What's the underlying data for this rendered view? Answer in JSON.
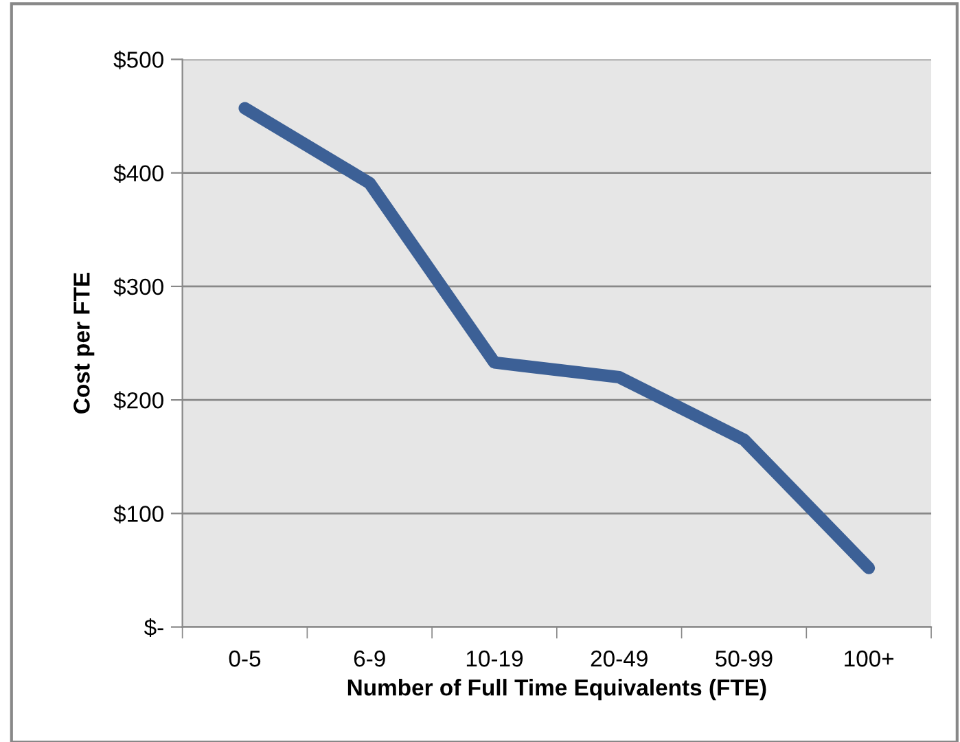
{
  "chart_data": {
    "type": "line",
    "xlabel": "Number of Full Time Equivalents (FTE)",
    "ylabel": "Cost per FTE",
    "categories": [
      "0-5",
      "6-9",
      "10-19",
      "20-49",
      "50-99",
      "100+"
    ],
    "series": [
      {
        "color": "#3c6096",
        "values": [
          457,
          391,
          233,
          220,
          165,
          52
        ]
      }
    ],
    "ylim": [
      0,
      500
    ],
    "yticks": [
      {
        "value": 0,
        "label": "$-"
      },
      {
        "value": 100,
        "label": "$100"
      },
      {
        "value": 200,
        "label": "$200"
      },
      {
        "value": 300,
        "label": "$300"
      },
      {
        "value": 400,
        "label": "$400"
      },
      {
        "value": 500,
        "label": "$500"
      }
    ],
    "grid": "y",
    "marker": "none",
    "line_style": "solid"
  }
}
